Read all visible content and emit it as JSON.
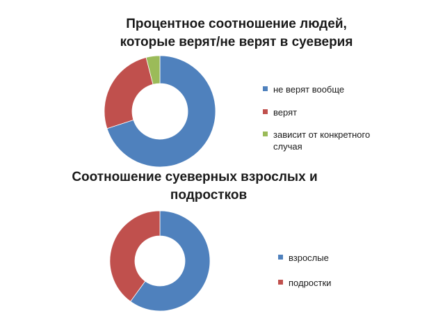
{
  "chart_data": [
    {
      "type": "donut",
      "title_lines": [
        "Процентное соотношение людей,",
        "которые верят/не верят в суеверия"
      ],
      "categories": [
        "не верят вообще",
        "верят",
        "зависит от конкретного случая"
      ],
      "legend_lines": [
        [
          "не верят вообще"
        ],
        [
          "верят"
        ],
        [
          "зависит от конкретного",
          "случая"
        ]
      ],
      "values": [
        70,
        26,
        4
      ],
      "colors": [
        "#4F81BD",
        "#C0504D",
        "#9BBB59"
      ],
      "legend": "right"
    },
    {
      "type": "donut",
      "title_lines": [
        "Соотношение суеверных взрослых и",
        "подростков"
      ],
      "categories": [
        "взрослые",
        "подростки"
      ],
      "legend_lines": [
        [
          "взрослые"
        ],
        [
          "подростки"
        ]
      ],
      "values": [
        60,
        40
      ],
      "colors": [
        "#4F81BD",
        "#C0504D"
      ],
      "legend": "right"
    }
  ]
}
